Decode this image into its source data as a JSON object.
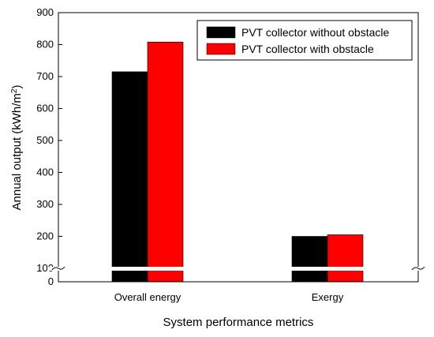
{
  "chart_data": {
    "type": "bar",
    "categories": [
      "Overall energy",
      "Exergy"
    ],
    "series": [
      {
        "name": "PVT collector without obstacle",
        "values": [
          715,
          200
        ],
        "color": "#000000"
      },
      {
        "name": "PVT collector with obstacle",
        "values": [
          808,
          205
        ],
        "color": "#ff0000"
      }
    ],
    "xlabel": "System performance metrics",
    "ylabel_main": "Annual output (kWh/m",
    "ylabel_sup": "2",
    "ylabel_end": ")",
    "yticks": [
      100,
      200,
      300,
      400,
      500,
      600,
      700,
      800,
      900
    ],
    "y_origin_label": "0",
    "ylim": [
      100,
      900
    ],
    "axis_break": true,
    "legend_position": "top-right",
    "grid": false
  }
}
